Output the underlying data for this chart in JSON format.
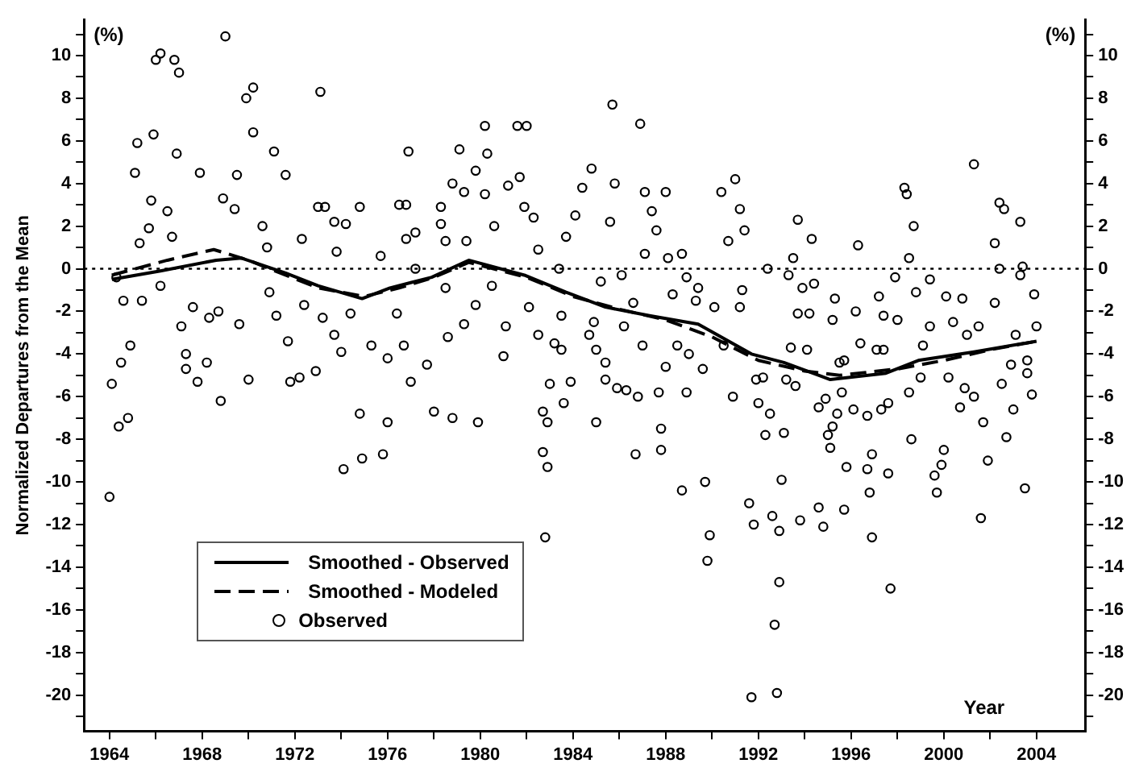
{
  "chart_data": {
    "type": "scatter",
    "ylabel": "Normalized Departures from the Mean",
    "xlabel": "Year",
    "annotations": [
      "(%)",
      "(%)"
    ],
    "xlim": [
      1962.9,
      2006.1
    ],
    "xticks": [
      1964,
      {
        "value": 1966,
        "label": null
      },
      1968,
      {
        "value": 1970,
        "label": null
      },
      1972,
      {
        "value": 1974,
        "label": null
      },
      1976,
      {
        "value": 1978,
        "label": null
      },
      1980,
      {
        "value": 1982,
        "label": null
      },
      1984,
      {
        "value": 1986,
        "label": null
      },
      1988,
      {
        "value": 1990,
        "label": null
      },
      1992,
      {
        "value": 1994,
        "label": null
      },
      1996,
      {
        "value": 1998,
        "label": null
      },
      2000,
      {
        "value": 2002,
        "label": null
      },
      2004
    ],
    "ylim": [
      -21.7,
      11.7
    ],
    "yticks": [
      {
        "value": -21,
        "label": null
      },
      -20,
      {
        "value": -19,
        "label": null
      },
      -18,
      {
        "value": -17,
        "label": null
      },
      -16,
      {
        "value": -15,
        "label": null
      },
      -14,
      {
        "value": -13,
        "label": null
      },
      -12,
      {
        "value": -11,
        "label": null
      },
      -10,
      {
        "value": -9,
        "label": null
      },
      -8,
      {
        "value": -7,
        "label": null
      },
      -6,
      {
        "value": -5,
        "label": null
      },
      -4,
      {
        "value": -3,
        "label": null
      },
      -2,
      {
        "value": -1,
        "label": null
      },
      0,
      {
        "value": 1,
        "label": null
      },
      2,
      {
        "value": 3,
        "label": null
      },
      4,
      {
        "value": 5,
        "label": null
      },
      6,
      {
        "value": 7,
        "label": null
      },
      8,
      {
        "value": 9,
        "label": null
      },
      10,
      {
        "value": 11,
        "label": null
      }
    ],
    "y2lim": [
      -21.7,
      11.7
    ],
    "y2ticks": [
      {
        "value": -21,
        "label": null
      },
      -20,
      {
        "value": -19,
        "label": null
      },
      -18,
      {
        "value": -17,
        "label": null
      },
      -16,
      {
        "value": -15,
        "label": null
      },
      -14,
      {
        "value": -13,
        "label": null
      },
      -12,
      {
        "value": -11,
        "label": null
      },
      -10,
      {
        "value": -9,
        "label": null
      },
      -8,
      {
        "value": -7,
        "label": null
      },
      -6,
      {
        "value": -5,
        "label": null
      },
      -4,
      {
        "value": -3,
        "label": null
      },
      -2,
      {
        "value": -1,
        "label": null
      },
      0,
      {
        "value": 1,
        "label": null
      },
      2,
      {
        "value": 3,
        "label": null
      },
      4,
      {
        "value": 5,
        "label": null
      },
      6,
      {
        "value": 7,
        "label": null
      },
      8,
      {
        "value": 9,
        "label": null
      },
      10,
      {
        "value": 11,
        "label": null
      }
    ],
    "grid": false,
    "legend": "bottom left",
    "ref_lines": [
      {
        "axis": "y",
        "value": 0,
        "line_style": "dotted",
        "color": "#000000"
      }
    ],
    "series": [
      {
        "name": "Smoothed - Observed",
        "type": "line",
        "line_style": "solid",
        "marker": "none",
        "color": "#000000",
        "x": [
          1964.1,
          1966.2,
          1968.6,
          1969.7,
          1971.6,
          1973.0,
          1974.9,
          1976.1,
          1977.9,
          1979.5,
          1981.9,
          1983.7,
          1985.4,
          1987.3,
          1989.4,
          1991.7,
          1993.1,
          1995.1,
          1997.5,
          1998.9,
          2001.3,
          2004.0
        ],
        "values": [
          -0.5,
          -0.1,
          0.4,
          0.5,
          -0.2,
          -0.8,
          -1.4,
          -0.9,
          -0.4,
          0.4,
          -0.3,
          -1.1,
          -1.8,
          -2.2,
          -2.6,
          -4.0,
          -4.4,
          -5.2,
          -4.9,
          -4.3,
          -3.9,
          -3.4
        ]
      },
      {
        "name": "Smoothed - Modeled",
        "type": "line",
        "line_style": "dashed",
        "marker": "none",
        "color": "#000000",
        "x": [
          1964.1,
          1966.5,
          1968.5,
          1970.0,
          1971.6,
          1973.0,
          1975.0,
          1976.5,
          1978.0,
          1979.5,
          1982.0,
          1984.0,
          1986.0,
          1988.0,
          1990.0,
          1992.0,
          1994.0,
          1995.5,
          1998.0,
          2000.0,
          2002.0,
          2004.0
        ],
        "values": [
          -0.3,
          0.4,
          0.9,
          0.4,
          -0.3,
          -0.9,
          -1.3,
          -0.9,
          -0.4,
          0.3,
          -0.4,
          -1.3,
          -1.9,
          -2.4,
          -3.2,
          -4.3,
          -4.8,
          -5.0,
          -4.7,
          -4.3,
          -3.8,
          -3.4
        ]
      },
      {
        "name": "Observed",
        "marker": "circle",
        "color": "#000000",
        "x": [
          1964.0,
          1964.1,
          1964.4,
          1964.8,
          1964.5,
          1964.9,
          1964.6,
          1964.3,
          1965.1,
          1965.2,
          1965.9,
          1966.0,
          1966.2,
          1966.8,
          1967.0,
          1966.9,
          1965.8,
          1965.7,
          1965.3,
          1965.4,
          1966.2,
          1966.5,
          1966.7,
          1967.1,
          1967.3,
          1967.3,
          1967.8,
          1967.6,
          1968.2,
          1968.8,
          1969.0,
          1967.9,
          1968.3,
          1968.7,
          1968.9,
          1969.4,
          1969.5,
          1969.9,
          1970.2,
          1970.2,
          1971.1,
          1971.6,
          1969.6,
          1970.0,
          1970.6,
          1970.8,
          1970.9,
          1971.2,
          1971.7,
          1971.8,
          1972.2,
          1972.3,
          1972.4,
          1972.9,
          1973.1,
          1973.0,
          1973.3,
          1973.7,
          1973.8,
          1973.2,
          1973.7,
          1974.0,
          1974.2,
          1974.8,
          1974.4,
          1974.1,
          1974.9,
          1975.8,
          1974.8,
          1976.0,
          1975.3,
          1976.0,
          1975.7,
          1976.4,
          1976.7,
          1977.0,
          1976.9,
          1976.5,
          1976.8,
          1976.8,
          1977.2,
          1977.2,
          1977.7,
          1978.0,
          1978.8,
          1979.9,
          1978.6,
          1979.3,
          1979.8,
          1978.5,
          1979.1,
          1978.8,
          1979.3,
          1979.8,
          1980.2,
          1980.3,
          1980.2,
          1978.3,
          1978.3,
          1978.5,
          1979.4,
          1980.6,
          1981.2,
          1981.6,
          1982.0,
          1981.7,
          1981.9,
          1982.3,
          1982.5,
          1980.5,
          1981.1,
          1981.0,
          1982.1,
          1982.5,
          1983.2,
          1983.5,
          1983.0,
          1983.9,
          1983.6,
          1982.7,
          1982.9,
          1982.7,
          1982.9,
          1982.8,
          1983.4,
          1983.5,
          1983.7,
          1984.1,
          1984.4,
          1984.8,
          1985.0,
          1984.7,
          1985.0,
          1985.4,
          1985.4,
          1984.9,
          1985.2,
          1985.7,
          1985.8,
          1985.6,
          1986.1,
          1986.2,
          1985.9,
          1986.3,
          1986.8,
          1986.7,
          1986.9,
          1987.0,
          1986.6,
          1987.1,
          1987.4,
          1987.6,
          1987.1,
          1988.0,
          1988.1,
          1987.7,
          1987.8,
          1987.8,
          1988.0,
          1988.5,
          1988.9,
          1988.7,
          1988.7,
          1988.9,
          1988.3,
          1989.0,
          1989.4,
          1989.3,
          1989.7,
          1989.9,
          1989.8,
          1989.6,
          1990.1,
          1990.4,
          1991.0,
          1990.7,
          1991.4,
          1990.9,
          1990.5,
          1991.3,
          1991.6,
          1991.8,
          1991.7,
          1991.9,
          1992.0,
          1991.2,
          1991.2,
          1992.8,
          1992.7,
          1992.9,
          1992.6,
          1992.9,
          1993.0,
          1993.1,
          1992.3,
          1992.5,
          1992.2,
          1992.4,
          1993.3,
          1993.5,
          1993.7,
          1994.3,
          1993.9,
          1994.4,
          1993.7,
          1994.2,
          1993.4,
          1994.1,
          1993.2,
          1993.6,
          1993.8,
          1994.6,
          1994.8,
          1994.6,
          1994.9,
          1995.0,
          1995.1,
          1995.2,
          1995.4,
          1995.6,
          1995.3,
          1995.2,
          1995.5,
          1995.7,
          1996.3,
          1996.2,
          1995.8,
          1995.7,
          1996.1,
          1996.7,
          1996.4,
          1996.7,
          1996.8,
          1996.9,
          1996.9,
          1997.2,
          1997.4,
          1997.1,
          1997.4,
          1997.3,
          1997.6,
          1997.6,
          1997.7,
          1997.9,
          1998.0,
          1998.3,
          1998.4,
          1998.7,
          1998.5,
          1998.8,
          1998.5,
          1998.6,
          1999.0,
          1999.1,
          1999.4,
          1999.4,
          1999.6,
          1999.7,
          1999.9,
          2000.0,
          2000.1,
          2000.2,
          2000.4,
          2000.7,
          2000.8,
          2001.0,
          2000.9,
          2001.3,
          2001.5,
          2001.3,
          2001.7,
          2001.6,
          2001.9,
          2002.2,
          2002.2,
          2002.4,
          2002.6,
          2002.4,
          2002.5,
          2002.9,
          2003.0,
          2002.7,
          2003.3,
          2003.4,
          2003.3,
          2003.1,
          2003.5,
          2003.6,
          2003.8,
          2003.9,
          2004.0,
          2003.6
        ],
        "values": [
          -10.7,
          -5.4,
          -7.4,
          -7.0,
          -4.4,
          -3.6,
          -1.5,
          -0.4,
          4.5,
          5.9,
          6.3,
          9.8,
          10.1,
          9.8,
          9.2,
          5.4,
          3.2,
          1.9,
          1.2,
          -1.5,
          -0.8,
          2.7,
          1.5,
          -2.7,
          -4.0,
          -4.7,
          -5.3,
          -1.8,
          -4.4,
          -6.2,
          10.9,
          4.5,
          -2.3,
          -2.0,
          3.3,
          2.8,
          4.4,
          8.0,
          8.5,
          6.4,
          5.5,
          4.4,
          -2.6,
          -5.2,
          2.0,
          1.0,
          -1.1,
          -2.2,
          -3.4,
          -5.3,
          -5.1,
          1.4,
          -1.7,
          -4.8,
          8.3,
          2.9,
          2.9,
          2.2,
          0.8,
          -2.3,
          -3.1,
          -3.9,
          2.1,
          2.9,
          -2.1,
          -9.4,
          -8.9,
          -8.7,
          -6.8,
          -7.2,
          -3.6,
          -4.2,
          0.6,
          -2.1,
          -3.6,
          -5.3,
          5.5,
          3.0,
          3.0,
          1.4,
          1.7,
          0.0,
          -4.5,
          -6.7,
          -7.0,
          -7.2,
          -3.2,
          -2.6,
          -1.7,
          -0.9,
          5.6,
          4.0,
          3.6,
          4.6,
          6.7,
          5.4,
          3.5,
          2.9,
          2.1,
          1.3,
          1.3,
          2.0,
          3.9,
          6.7,
          6.7,
          4.3,
          2.9,
          2.4,
          0.9,
          -0.8,
          -2.7,
          -4.1,
          -1.8,
          -3.1,
          -3.5,
          -3.8,
          -5.4,
          -5.3,
          -6.3,
          -6.7,
          -7.2,
          -8.6,
          -9.3,
          -12.6,
          0.0,
          -2.2,
          1.5,
          2.5,
          3.8,
          4.7,
          -7.2,
          -3.1,
          -3.8,
          -4.4,
          -5.2,
          -2.5,
          -0.6,
          7.7,
          4.0,
          2.2,
          -0.3,
          -2.7,
          -5.6,
          -5.7,
          -6.0,
          -8.7,
          6.8,
          -3.6,
          -1.6,
          3.6,
          2.7,
          1.8,
          0.7,
          3.6,
          0.5,
          -5.8,
          -7.5,
          -8.5,
          -4.6,
          -3.6,
          -5.8,
          -10.4,
          0.7,
          -0.4,
          -1.2,
          -4.0,
          -0.9,
          -1.5,
          -10.0,
          -12.5,
          -13.7,
          -4.7,
          -1.8,
          3.6,
          4.2,
          1.3,
          1.8,
          -6.0,
          -3.6,
          -1.0,
          -11.0,
          -12.0,
          -20.1,
          -5.2,
          -6.3,
          2.8,
          -1.8,
          -19.9,
          -16.7,
          -14.7,
          -11.6,
          -12.3,
          -9.9,
          -7.7,
          -7.8,
          -6.8,
          -5.1,
          0.0,
          -0.3,
          0.5,
          2.3,
          1.4,
          -0.9,
          -0.7,
          -2.1,
          -2.1,
          -3.7,
          -3.8,
          -5.2,
          -5.5,
          -11.8,
          -11.2,
          -12.1,
          -6.5,
          -6.1,
          -7.8,
          -8.4,
          -7.4,
          -6.8,
          -5.8,
          -1.4,
          -2.4,
          -4.4,
          -4.3,
          1.1,
          -2.0,
          -9.3,
          -11.3,
          -6.6,
          -6.9,
          -3.5,
          -9.4,
          -10.5,
          -8.7,
          -12.6,
          -1.3,
          -2.2,
          -3.8,
          -3.8,
          -6.6,
          -6.3,
          -9.6,
          -15.0,
          -0.4,
          -2.4,
          3.8,
          3.5,
          2.0,
          0.5,
          -1.1,
          -5.8,
          -8.0,
          -5.1,
          -3.6,
          -0.5,
          -2.7,
          -9.7,
          -10.5,
          -9.2,
          -8.5,
          -1.3,
          -5.1,
          -2.5,
          -6.5,
          -1.4,
          -3.1,
          -5.6,
          4.9,
          -2.7,
          -6.0,
          -7.2,
          -11.7,
          -9.0,
          1.2,
          -1.6,
          3.1,
          2.8,
          0.0,
          -5.4,
          -4.5,
          -6.6,
          -7.9,
          2.2,
          0.1,
          -0.3,
          -3.1,
          -10.3,
          -4.9,
          -5.9,
          -1.2,
          -2.7,
          -4.3
        ]
      }
    ]
  }
}
